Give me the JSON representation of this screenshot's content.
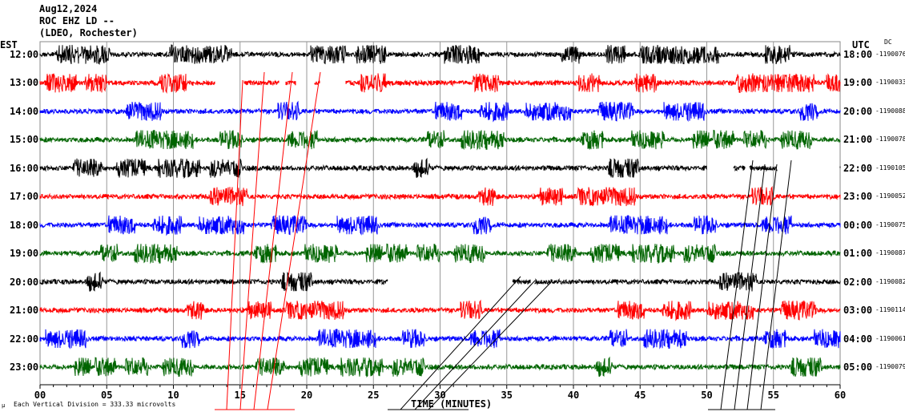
{
  "header": {
    "date": "Aug12,2024",
    "station": "ROC EHZ LD --",
    "network": "(LDEO, Rochester)"
  },
  "left_axis_label": "EST",
  "right_axis_label": "UTC",
  "dc_label": "DC",
  "footer": {
    "scale_icon": "μ",
    "scale_text": "Each Vertical Division =  333.33 microvolts",
    "xlabel": "TIME (MINUTES)"
  },
  "chart_data": {
    "type": "line",
    "title": "ROC EHZ LD --",
    "xlabel": "TIME (MINUTES)",
    "xlim": [
      0,
      60
    ],
    "xticks": [
      "00",
      "05",
      "10",
      "15",
      "20",
      "25",
      "30",
      "35",
      "40",
      "45",
      "50",
      "55",
      "60"
    ],
    "grid": "vertical every 5 minutes",
    "colors": [
      "#000000",
      "#ff0000",
      "#0000ff",
      "#006400"
    ],
    "rows": [
      {
        "est": "12:00",
        "utc": "18:00",
        "dc": "-1190076",
        "gaps": []
      },
      {
        "est": "13:00",
        "utc": "19:00",
        "dc": "-1190033",
        "gaps": [
          [
            13.1,
            15.3
          ],
          [
            17.9,
            18.4
          ],
          [
            19.2,
            20.6
          ],
          [
            21.0,
            22.9
          ]
        ]
      },
      {
        "est": "14:00",
        "utc": "20:00",
        "dc": "-1190088",
        "gaps": []
      },
      {
        "est": "15:00",
        "utc": "21:00",
        "dc": "-1190078",
        "gaps": []
      },
      {
        "est": "16:00",
        "utc": "22:00",
        "dc": "-1190105",
        "gaps": [
          [
            50.0,
            52.0
          ],
          [
            52.9,
            53.2
          ],
          [
            55.3,
            60
          ]
        ]
      },
      {
        "est": "17:00",
        "utc": "23:00",
        "dc": "-1190052",
        "gaps": []
      },
      {
        "est": "18:00",
        "utc": "00:00",
        "dc": "-1190075",
        "gaps": []
      },
      {
        "est": "19:00",
        "utc": "01:00",
        "dc": "-1190087",
        "gaps": []
      },
      {
        "est": "20:00",
        "utc": "02:00",
        "dc": "-1190082",
        "gaps": [
          [
            26.1,
            35.4
          ],
          [
            36.8,
            37.1
          ]
        ]
      },
      {
        "est": "21:00",
        "utc": "03:00",
        "dc": "-1190114",
        "gaps": []
      },
      {
        "est": "22:00",
        "utc": "04:00",
        "dc": "-1190061",
        "gaps": []
      },
      {
        "est": "23:00",
        "utc": "05:00",
        "dc": "-1190079",
        "gaps": []
      }
    ]
  }
}
